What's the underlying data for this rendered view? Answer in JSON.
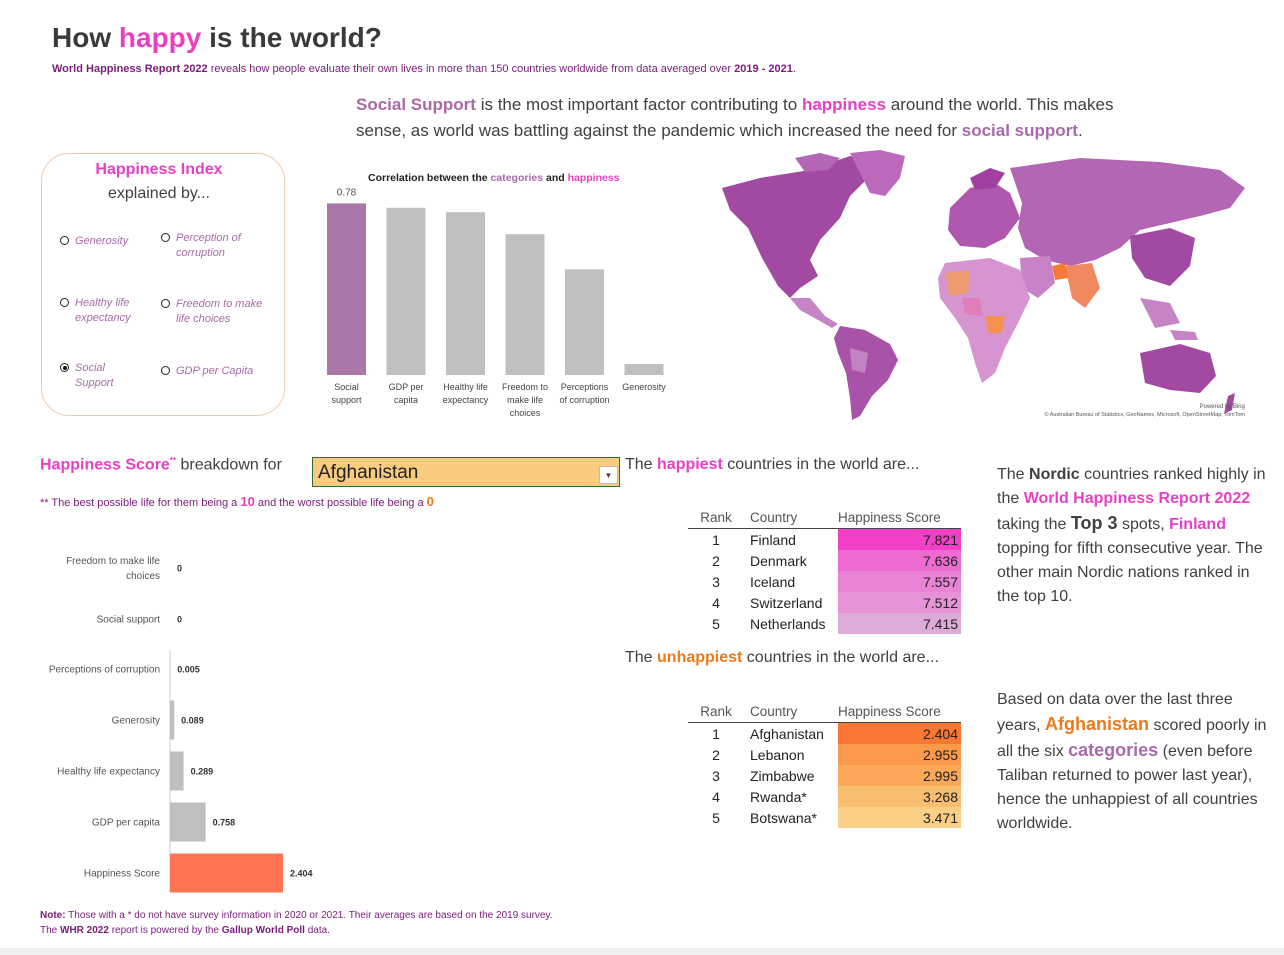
{
  "header": {
    "title_pre": "How ",
    "title_hl": "happy",
    "title_post": " is the world?",
    "subtitle_b1": "World Happiness Report 2022",
    "subtitle_mid": " reveals how people evaluate their own lives in more than 150 countries worldwide from data averaged over ",
    "subtitle_b2": "2019 - 2021",
    "subtitle_end": "."
  },
  "insight": {
    "p1": "Social Support",
    "p2": " is the most important factor contributing to ",
    "p3": "happiness",
    "p4": " around the world. This makes sense, as world was battling against the pandemic which increased the need for ",
    "p5": "social support",
    "p6": "."
  },
  "index_panel": {
    "title": "Happiness Index",
    "subtitle": "explained by...",
    "options": [
      {
        "label_l1": "Generosity",
        "label_l2": "",
        "selected": false
      },
      {
        "label_l1": "Perception of",
        "label_l2": "corruption",
        "selected": false
      },
      {
        "label_l1": "Healthy life",
        "label_l2": "expectancy",
        "selected": false
      },
      {
        "label_l1": "Freedom to make",
        "label_l2": "life choices",
        "selected": false
      },
      {
        "label_l1": "Social",
        "label_l2": "Support",
        "selected": true
      },
      {
        "label_l1": "GDP per Capita",
        "label_l2": "",
        "selected": false
      }
    ]
  },
  "chart_data": [
    {
      "type": "bar",
      "title_pre": "Correlation between the ",
      "title_hl1": "categories",
      "title_mid": " and ",
      "title_hl2": "happiness",
      "categories": [
        [
          "Social",
          "support"
        ],
        [
          "GDP per",
          "capita"
        ],
        [
          "Healthy life",
          "expectancy"
        ],
        [
          "Freedom to",
          "make life",
          "choices"
        ],
        [
          "Perceptions",
          "of corruption"
        ],
        [
          "Generosity"
        ]
      ],
      "values": [
        0.78,
        0.76,
        0.74,
        0.64,
        0.48,
        0.05
      ],
      "data_labels": [
        "0.78",
        "",
        "",
        "",
        "",
        ""
      ],
      "ylim": [
        0,
        0.8
      ],
      "highlight_color": "#a978a9",
      "base_color": "#bfbfbf"
    },
    {
      "type": "bar",
      "orientation": "horizontal",
      "categories": [
        [
          "Freedom to make life",
          "choices"
        ],
        [
          "Social support"
        ],
        [
          "Perceptions of corruption"
        ],
        [
          "Generosity"
        ],
        [
          "Healthy life expectancy"
        ],
        [
          "GDP per capita"
        ],
        [
          "Happiness Score"
        ]
      ],
      "values": [
        0,
        0,
        0.005,
        0.089,
        0.289,
        0.758,
        2.404
      ],
      "data_labels": [
        "0",
        "0",
        "0.005",
        "0.089",
        "0.289",
        "0.758",
        "2.404"
      ],
      "xlim": [
        0,
        10
      ],
      "base_color": "#bfbfbf",
      "highlight_color": "#ff7352"
    }
  ],
  "breakdown": {
    "label_hl": "Happiness Score",
    "label_sup": "**",
    "label_rest": " breakdown for",
    "selected_country": "Afghanistan",
    "footnote_pre": "** The best possible life for them being a ",
    "footnote_10": "10",
    "footnote_mid": " and the worst possible life being a ",
    "footnote_0": "0"
  },
  "map": {
    "credit1": "Powered by Bing",
    "credit2": "© Australian Bureau of Statistics, GeoNames, Microsoft, OpenStreetMap, TomTom"
  },
  "happiest": {
    "head_pre": "The ",
    "head_hl": "happiest",
    "head_post": " countries in the world are...",
    "columns": [
      "Rank",
      "Country",
      "Happiness Score"
    ],
    "rows": [
      {
        "rank": "1",
        "country": "Finland",
        "score": "7.821",
        "color": "#f23fc8"
      },
      {
        "rank": "2",
        "country": "Denmark",
        "score": "7.636",
        "color": "#ee6bd1"
      },
      {
        "rank": "3",
        "country": "Iceland",
        "score": "7.557",
        "color": "#ea82d5"
      },
      {
        "rank": "4",
        "country": "Switzerland",
        "score": "7.512",
        "color": "#e793d8"
      },
      {
        "rank": "5",
        "country": "Netherlands",
        "score": "7.415",
        "color": "#dcabd8"
      }
    ]
  },
  "unhappiest": {
    "head_pre": "The ",
    "head_hl": "unhappiest",
    "head_post": " countries in the world are...",
    "columns": [
      "Rank",
      "Country",
      "Happiness Score"
    ],
    "rows": [
      {
        "rank": "1",
        "country": "Afghanistan",
        "score": "2.404",
        "color": "#f87733"
      },
      {
        "rank": "2",
        "country": "Lebanon",
        "score": "2.955",
        "color": "#fa9a4a"
      },
      {
        "rank": "3",
        "country": "Zimbabwe",
        "score": "2.995",
        "color": "#fba858"
      },
      {
        "rank": "4",
        "country": "Rwanda*",
        "score": "3.268",
        "color": "#f9bd6f"
      },
      {
        "rank": "5",
        "country": "Botswana*",
        "score": "3.471",
        "color": "#f8cf85"
      }
    ]
  },
  "nordic": {
    "t1": "The ",
    "t2": "Nordic",
    "t3": " countries ranked highly in the ",
    "t4": "World Happiness Report 2022",
    "t5": " taking the ",
    "t6": "Top 3",
    "t7": " spots, ",
    "t8": "Finland",
    "t9": " topping for fifth consecutive year. The other main Nordic nations ranked in the top 10."
  },
  "afghan": {
    "t1": "Based on data over the last three years, ",
    "t2": "Afghanistan",
    "t3": " scored poorly in all the six ",
    "t4": "categories",
    "t5": " (even before Taliban returned to power last year), hence the unhappiest of all countries worldwide."
  },
  "note": {
    "l1_b": "Note:",
    "l1": " Those with a * do not have survey information in 2020 or 2021. Their averages are based on the 2019 survey.",
    "l2_a": "The ",
    "l2_b": "WHR 2022",
    "l2_c": " report is powered by the ",
    "l2_d": "Gallup World Poll",
    "l2_e": " data."
  }
}
